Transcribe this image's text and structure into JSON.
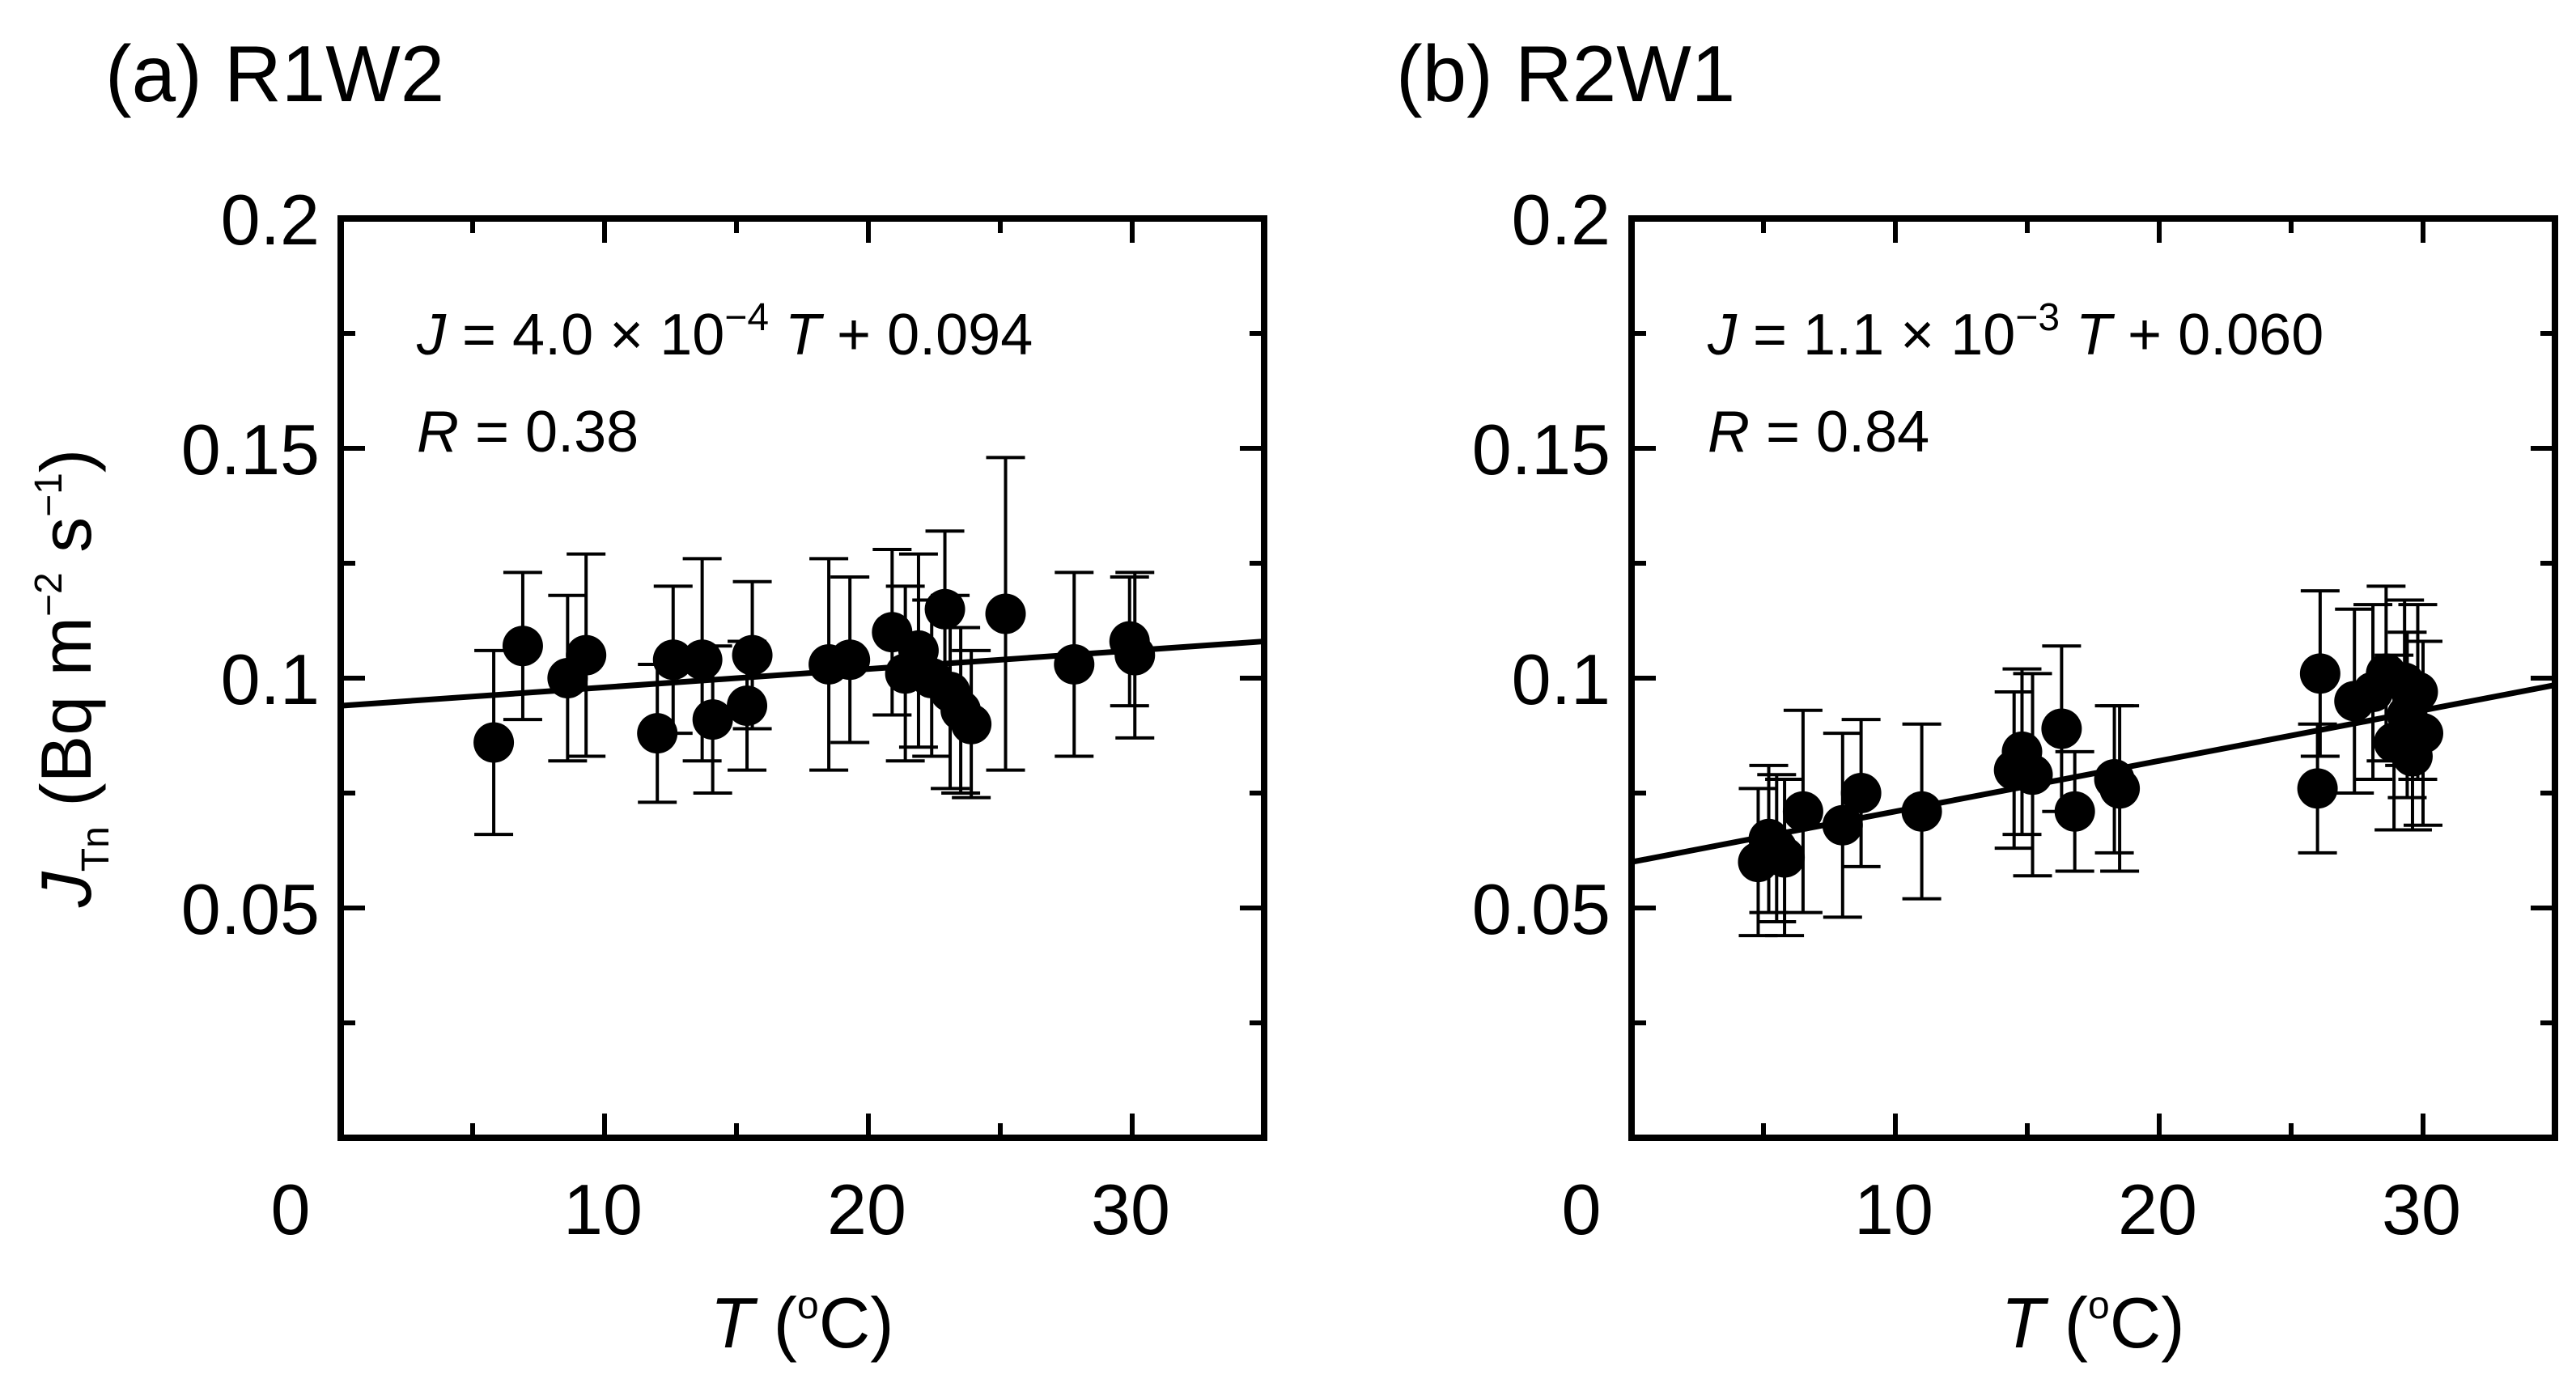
{
  "chart_data": [
    {
      "type": "scatter",
      "panel_title": "(a) R1W2",
      "xlabel_italic": "T",
      "xlabel_rest": " (",
      "xlabel_sup": "o",
      "xlabel_unit": "C)",
      "ylabel_main": "J",
      "ylabel_sub": "Tn",
      "ylabel_unit_a": " (Bq m",
      "ylabel_sup_a": "−2",
      "ylabel_unit_b": " s",
      "ylabel_sup_b": "−1",
      "ylabel_close": ")",
      "xlim": [
        0,
        35
      ],
      "ylim": [
        0,
        0.2
      ],
      "xticks": [
        "0",
        "10",
        "20",
        "30"
      ],
      "yticks": [
        "0.05",
        "0.1",
        "0.15",
        "0.2"
      ],
      "equation": {
        "var": "J",
        "lhs": " = 4.0 × 10",
        "exp": "−4",
        "t": " T",
        "rhs": " + 0.094"
      },
      "r_label": {
        "var": "R",
        "text": " = 0.38"
      },
      "fit": {
        "slope": 0.0004,
        "intercept": 0.094
      },
      "points": [
        {
          "x": 5.8,
          "y": 0.086,
          "err": 0.02
        },
        {
          "x": 6.9,
          "y": 0.107,
          "err": 0.016
        },
        {
          "x": 8.6,
          "y": 0.1,
          "err": 0.018
        },
        {
          "x": 9.3,
          "y": 0.105,
          "err": 0.022
        },
        {
          "x": 12.0,
          "y": 0.088,
          "err": 0.015
        },
        {
          "x": 12.6,
          "y": 0.104,
          "err": 0.016
        },
        {
          "x": 13.7,
          "y": 0.104,
          "err": 0.022
        },
        {
          "x": 14.1,
          "y": 0.091,
          "err": 0.016
        },
        {
          "x": 15.4,
          "y": 0.094,
          "err": 0.014
        },
        {
          "x": 15.6,
          "y": 0.105,
          "err": 0.016
        },
        {
          "x": 18.5,
          "y": 0.103,
          "err": 0.023
        },
        {
          "x": 19.3,
          "y": 0.104,
          "err": 0.018
        },
        {
          "x": 20.9,
          "y": 0.11,
          "err": 0.018
        },
        {
          "x": 21.4,
          "y": 0.101,
          "err": 0.019
        },
        {
          "x": 21.9,
          "y": 0.106,
          "err": 0.021
        },
        {
          "x": 22.4,
          "y": 0.1,
          "err": 0.017
        },
        {
          "x": 22.9,
          "y": 0.115,
          "err": 0.017
        },
        {
          "x": 23.1,
          "y": 0.097,
          "err": 0.021
        },
        {
          "x": 23.5,
          "y": 0.093,
          "err": 0.018
        },
        {
          "x": 23.9,
          "y": 0.09,
          "err": 0.016
        },
        {
          "x": 25.2,
          "y": 0.114,
          "err": 0.034
        },
        {
          "x": 27.8,
          "y": 0.103,
          "err": 0.02
        },
        {
          "x": 29.9,
          "y": 0.108,
          "err": 0.014
        },
        {
          "x": 30.1,
          "y": 0.105,
          "err": 0.018
        }
      ]
    },
    {
      "type": "scatter",
      "panel_title": "(b) R2W1",
      "xlabel_italic": "T",
      "xlabel_rest": " (",
      "xlabel_sup": "o",
      "xlabel_unit": "C)",
      "xlim": [
        0,
        35
      ],
      "ylim": [
        0,
        0.2
      ],
      "xticks": [
        "0",
        "10",
        "20",
        "30"
      ],
      "yticks": [
        "0.05",
        "0.1",
        "0.15",
        "0.2"
      ],
      "equation": {
        "var": "J",
        "lhs": " = 1.1 × 10",
        "exp": "−3",
        "t": " T",
        "rhs": " + 0.060"
      },
      "r_label": {
        "var": "R",
        "text": " = 0.84"
      },
      "fit": {
        "slope": 0.0011,
        "intercept": 0.06
      },
      "points": [
        {
          "x": 4.8,
          "y": 0.06,
          "err": 0.016
        },
        {
          "x": 5.2,
          "y": 0.065,
          "err": 0.016
        },
        {
          "x": 5.5,
          "y": 0.063,
          "err": 0.016
        },
        {
          "x": 5.8,
          "y": 0.061,
          "err": 0.017
        },
        {
          "x": 6.5,
          "y": 0.071,
          "err": 0.022
        },
        {
          "x": 8.0,
          "y": 0.068,
          "err": 0.02
        },
        {
          "x": 8.7,
          "y": 0.075,
          "err": 0.016
        },
        {
          "x": 11.0,
          "y": 0.071,
          "err": 0.019
        },
        {
          "x": 14.5,
          "y": 0.08,
          "err": 0.017
        },
        {
          "x": 14.8,
          "y": 0.084,
          "err": 0.018
        },
        {
          "x": 15.2,
          "y": 0.079,
          "err": 0.022
        },
        {
          "x": 16.3,
          "y": 0.089,
          "err": 0.018
        },
        {
          "x": 16.8,
          "y": 0.071,
          "err": 0.013
        },
        {
          "x": 18.3,
          "y": 0.078,
          "err": 0.016
        },
        {
          "x": 18.5,
          "y": 0.076,
          "err": 0.018
        },
        {
          "x": 26.1,
          "y": 0.101,
          "err": 0.018
        },
        {
          "x": 26.0,
          "y": 0.076,
          "err": 0.014
        },
        {
          "x": 27.4,
          "y": 0.095,
          "err": 0.02
        },
        {
          "x": 28.1,
          "y": 0.097,
          "err": 0.019
        },
        {
          "x": 28.6,
          "y": 0.101,
          "err": 0.019
        },
        {
          "x": 28.9,
          "y": 0.086,
          "err": 0.019
        },
        {
          "x": 29.3,
          "y": 0.099,
          "err": 0.018
        },
        {
          "x": 29.6,
          "y": 0.083,
          "err": 0.016
        },
        {
          "x": 29.8,
          "y": 0.097,
          "err": 0.019
        },
        {
          "x": 30.0,
          "y": 0.088,
          "err": 0.02
        },
        {
          "x": 29.4,
          "y": 0.092,
          "err": 0.018
        }
      ]
    }
  ]
}
